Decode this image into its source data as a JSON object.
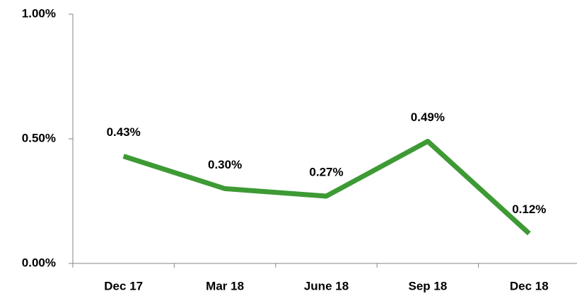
{
  "chart_data": {
    "type": "line",
    "categories": [
      "Dec 17",
      "Mar 18",
      "June 18",
      "Sep 18",
      "Dec 18"
    ],
    "series": [
      {
        "color": "#3d9a34",
        "values": [
          0.43,
          0.3,
          0.27,
          0.49,
          0.12
        ],
        "value_labels": [
          "0.43%",
          "0.30%",
          "0.27%",
          "0.49%",
          "0.12%"
        ]
      }
    ],
    "ylim": [
      0,
      1
    ],
    "yticks": [
      {
        "value": 0,
        "label": "0.00%"
      },
      {
        "value": 0.5,
        "label": "0.50%"
      },
      {
        "value": 1,
        "label": "1.00%"
      }
    ],
    "grid": false
  }
}
